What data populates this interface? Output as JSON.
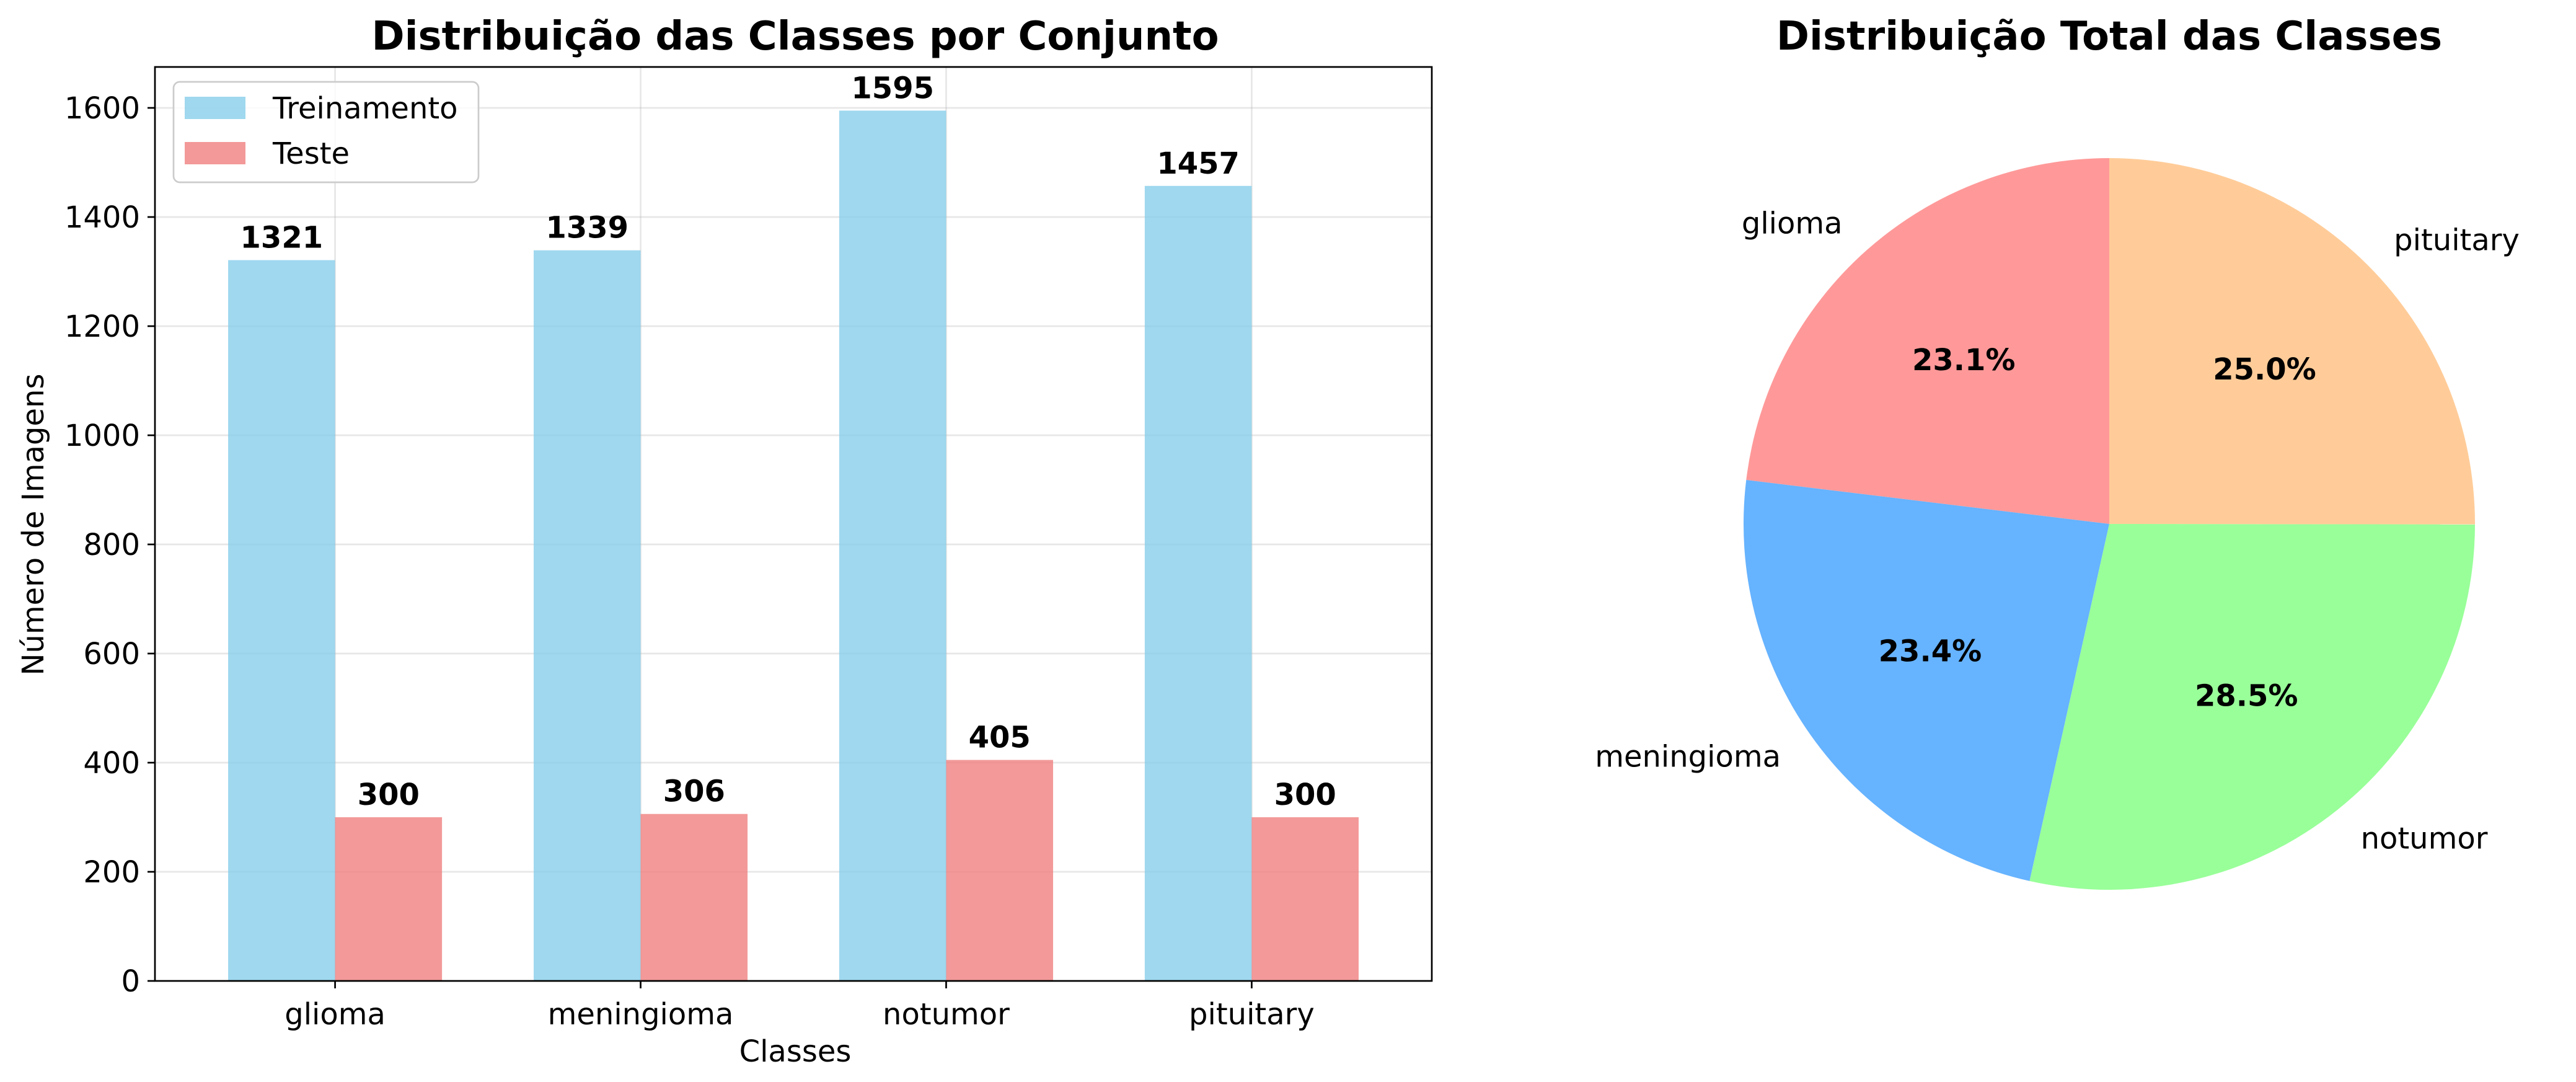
{
  "chart_data": [
    {
      "type": "bar",
      "title": "Distribuição das Classes por Conjunto",
      "xlabel": "Classes",
      "ylabel": "Número de Imagens",
      "categories": [
        "glioma",
        "meningioma",
        "notumor",
        "pituitary"
      ],
      "series": [
        {
          "name": "Treinamento",
          "values": [
            1321,
            1339,
            1595,
            1457
          ],
          "color": "#87ceeb"
        },
        {
          "name": "Teste",
          "values": [
            300,
            306,
            405,
            300
          ],
          "color": "#f08080"
        }
      ],
      "ylim": [
        0,
        1675
      ],
      "yticks": [
        0,
        200,
        400,
        600,
        800,
        1000,
        1200,
        1400,
        1600
      ],
      "grid": true,
      "legend_position": "upper-left"
    },
    {
      "type": "pie",
      "title": "Distribuição Total das Classes",
      "labels": [
        "glioma",
        "meningioma",
        "notumor",
        "pituitary"
      ],
      "values": [
        1621,
        1645,
        2000,
        1757
      ],
      "percent_labels": [
        "23.1%",
        "23.4%",
        "28.5%",
        "25.0%"
      ],
      "colors": [
        "#ff9999",
        "#66b3ff",
        "#99ff99",
        "#ffcc99"
      ],
      "start_angle_deg": 90,
      "direction": "counterclockwise"
    }
  ]
}
